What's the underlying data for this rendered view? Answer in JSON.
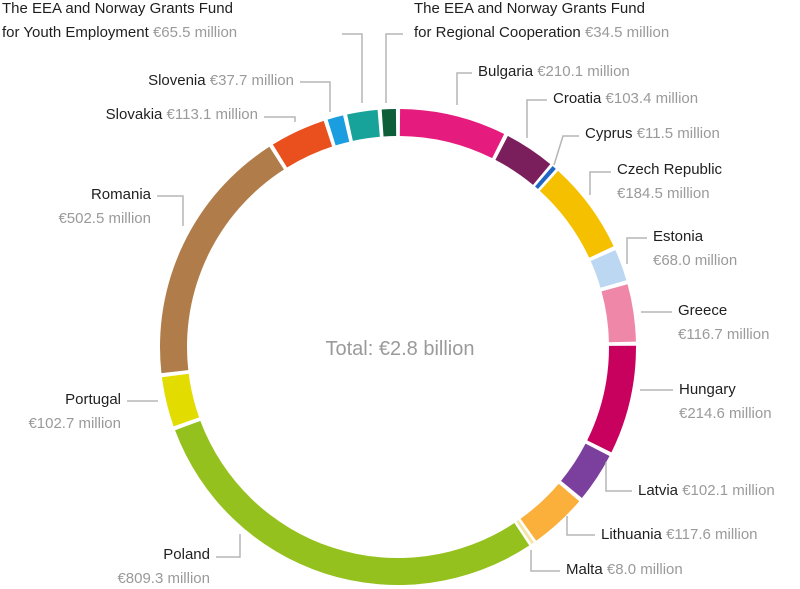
{
  "chart_data": {
    "type": "pie",
    "center_label": "Total: €2.8 billion",
    "slices": [
      {
        "name": "Bulgaria",
        "value_label": "€210.1 million",
        "value": 210.1,
        "color": "#e51c7d"
      },
      {
        "name": "Croatia",
        "value_label": "€103.4 million",
        "value": 103.4,
        "color": "#7a1f5c"
      },
      {
        "name": "Cyprus",
        "value_label": "€11.5 million",
        "value": 11.5,
        "color": "#2166c4"
      },
      {
        "name": "Czech Republic",
        "value_label": "€184.5 million",
        "value": 184.5,
        "color": "#f4c000"
      },
      {
        "name": "Estonia",
        "value_label": "€68.0 million",
        "value": 68.0,
        "color": "#bcd7f2"
      },
      {
        "name": "Greece",
        "value_label": "€116.7 million",
        "value": 116.7,
        "color": "#ef88a8"
      },
      {
        "name": "Hungary",
        "value_label": "€214.6 million",
        "value": 214.6,
        "color": "#c8005e"
      },
      {
        "name": "Latvia",
        "value_label": "€102.1 million",
        "value": 102.1,
        "color": "#7b3f9e"
      },
      {
        "name": "Lithuania",
        "value_label": "€117.6 million",
        "value": 117.6,
        "color": "#fbb03b"
      },
      {
        "name": "Malta",
        "value_label": "€8.0 million",
        "value": 8.0,
        "color": "#f2e6a6"
      },
      {
        "name": "Poland",
        "value_label": "€809.3 million",
        "value": 809.3,
        "color": "#95c11f"
      },
      {
        "name": "Portugal",
        "value_label": "€102.7 million",
        "value": 102.7,
        "color": "#e3dc00"
      },
      {
        "name": "Romania",
        "value_label": "€502.5 million",
        "value": 502.5,
        "color": "#b07d4a"
      },
      {
        "name": "Slovakia",
        "value_label": "€113.1 million",
        "value": 113.1,
        "color": "#e9501e"
      },
      {
        "name": "Slovenia",
        "value_label": "€37.7 million",
        "value": 37.7,
        "color": "#1a9ee0"
      },
      {
        "name": "The EEA and Norway Grants Fund for Youth Employment",
        "value_label": "€65.5 million",
        "value": 65.5,
        "color": "#17a29a"
      },
      {
        "name": "The EEA and Norway Grants Fund for Regional Cooperation",
        "value_label": "€34.5 million",
        "value": 34.5,
        "color": "#0e5e3a"
      }
    ]
  }
}
